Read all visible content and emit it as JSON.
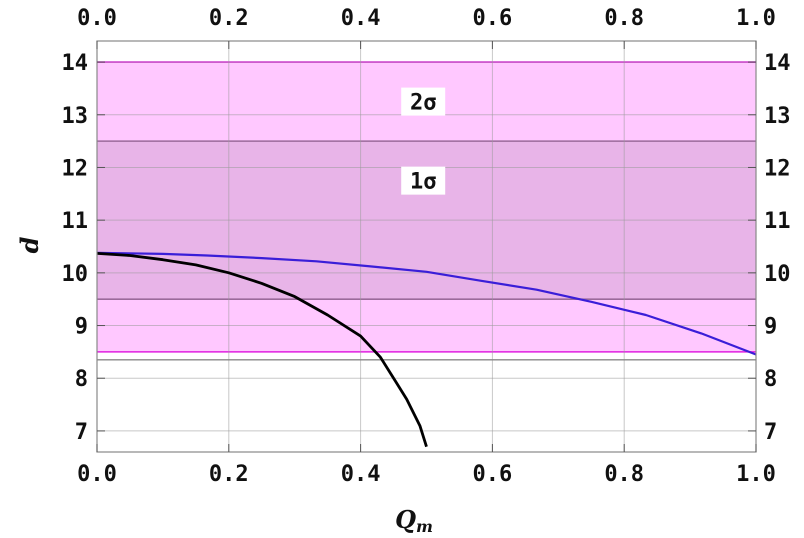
{
  "chart_data": {
    "type": "line",
    "xlabel": "Q",
    "xlabel_sub": "m",
    "ylabel": "d",
    "xlim": [
      0,
      1.0
    ],
    "ylim": [
      6.6,
      14.4
    ],
    "x_ticks": [
      0.0,
      0.2,
      0.4,
      0.6,
      0.8,
      1.0
    ],
    "x_tick_labels": [
      "0.0",
      "0.2",
      "0.4",
      "0.6",
      "0.8",
      "1.0"
    ],
    "y_ticks": [
      7,
      8,
      9,
      10,
      11,
      12,
      13,
      14
    ],
    "y_tick_labels": [
      "7",
      "8",
      "9",
      "10",
      "11",
      "12",
      "13",
      "14"
    ],
    "grid": true,
    "bands": [
      {
        "label": "2σ",
        "y0": 8.5,
        "y1": 14.0,
        "color": "#ffc8ff",
        "edge_color": "#e020e0",
        "label_x": 0.495,
        "label_y": 13.25
      },
      {
        "label": "1σ",
        "y0": 9.5,
        "y1": 12.5,
        "color": "#e8b4e8",
        "edge_color": "#9a6a9a",
        "label_x": 0.495,
        "label_y": 11.75
      }
    ],
    "hline": {
      "y": 8.35,
      "color": "#888888"
    },
    "series": [
      {
        "color": "#3a1ed8",
        "x": [
          0.0,
          0.1,
          0.167,
          0.25,
          0.333,
          0.417,
          0.5,
          0.583,
          0.667,
          0.75,
          0.833,
          0.917,
          1.0
        ],
        "y": [
          10.38,
          10.36,
          10.33,
          10.28,
          10.22,
          10.12,
          10.02,
          9.85,
          9.68,
          9.45,
          9.2,
          8.85,
          8.45
        ]
      },
      {
        "color": "#000000",
        "x": [
          0.0,
          0.05,
          0.1,
          0.15,
          0.2,
          0.25,
          0.3,
          0.35,
          0.4,
          0.43,
          0.45,
          0.47,
          0.49,
          0.5
        ],
        "y": [
          10.37,
          10.33,
          10.25,
          10.15,
          10.0,
          9.8,
          9.55,
          9.2,
          8.8,
          8.4,
          8.0,
          7.6,
          7.1,
          6.7
        ]
      }
    ]
  }
}
